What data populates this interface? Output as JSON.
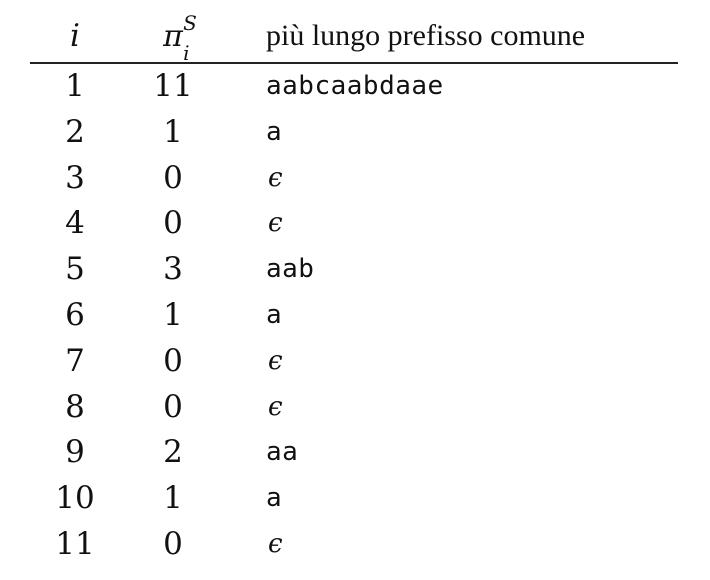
{
  "header": {
    "i": "i",
    "pi_base": "π",
    "pi_sup": "S",
    "pi_sub": "i",
    "prefix": "più lungo prefisso comune"
  },
  "rows": [
    {
      "i": "1",
      "pi": "11",
      "prefix": "aabcaabdaae",
      "epsilon": false
    },
    {
      "i": "2",
      "pi": "1",
      "prefix": "a",
      "epsilon": false
    },
    {
      "i": "3",
      "pi": "0",
      "prefix": "ϵ",
      "epsilon": true
    },
    {
      "i": "4",
      "pi": "0",
      "prefix": "ϵ",
      "epsilon": true
    },
    {
      "i": "5",
      "pi": "3",
      "prefix": "aab",
      "epsilon": false
    },
    {
      "i": "6",
      "pi": "1",
      "prefix": "a",
      "epsilon": false
    },
    {
      "i": "7",
      "pi": "0",
      "prefix": "ϵ",
      "epsilon": true
    },
    {
      "i": "8",
      "pi": "0",
      "prefix": "ϵ",
      "epsilon": true
    },
    {
      "i": "9",
      "pi": "2",
      "prefix": "aa",
      "epsilon": false
    },
    {
      "i": "10",
      "pi": "1",
      "prefix": "a",
      "epsilon": false
    },
    {
      "i": "11",
      "pi": "0",
      "prefix": "ϵ",
      "epsilon": true
    }
  ]
}
